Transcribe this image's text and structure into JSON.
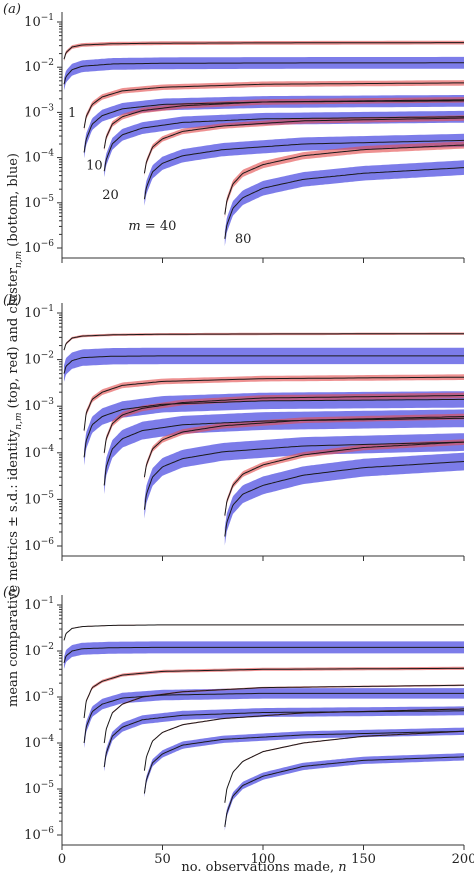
{
  "figure": {
    "ylabel_parts": {
      "main": "mean comparative metrics ± s.d.: identity",
      "sub1": "n,m",
      "mid": " (top, red) and cluster",
      "sub2": "n,m",
      "end": " (bottom, blue)"
    },
    "xlabel_parts": {
      "main": "no. observations made, ",
      "var": "n"
    },
    "colors": {
      "red": "#e34d4d",
      "blue": "#4a4ae0",
      "line": "#1a1a1a"
    }
  },
  "chart_data": [
    {
      "type": "area",
      "panel_label": "(a)",
      "m_values": [
        1,
        10,
        20,
        40,
        80
      ],
      "curve_labels": [
        {
          "text": "1"
        },
        {
          "text": "10"
        },
        {
          "text": "20"
        },
        {
          "text": "m = 40",
          "italic_prefix": "m",
          "rest": " = 40"
        },
        {
          "text": "80"
        }
      ],
      "y_scale": "log",
      "ylim": [
        1e-06,
        0.1
      ],
      "xlim": [
        0,
        200
      ],
      "ytick_labels": [
        "10−1",
        "10−2",
        "10−3",
        "10−4",
        "10−5",
        "10−6"
      ],
      "series": [
        {
          "group": "red",
          "m": 1,
          "x": [
            1,
            2,
            5,
            10,
            25,
            50,
            100,
            200
          ],
          "mean": [
            0.015,
            0.021,
            0.028,
            0.031,
            0.033,
            0.034,
            0.0345,
            0.035
          ],
          "sd_factor": 1.1
        },
        {
          "group": "blue",
          "m": 1,
          "x": [
            1,
            2,
            5,
            10,
            25,
            50,
            100,
            200
          ],
          "mean": [
            0.0042,
            0.0062,
            0.0088,
            0.0105,
            0.0118,
            0.0122,
            0.0124,
            0.0125
          ],
          "sd_factor": 1.35
        },
        {
          "group": "red",
          "m": 10,
          "x": [
            11,
            12,
            15,
            20,
            30,
            50,
            100,
            200
          ],
          "mean": [
            0.00045,
            0.0008,
            0.0015,
            0.0022,
            0.003,
            0.0036,
            0.0042,
            0.0045
          ],
          "sd_factor": 1.15
        },
        {
          "group": "blue",
          "m": 10,
          "x": [
            11,
            12,
            15,
            20,
            30,
            50,
            100,
            200
          ],
          "mean": [
            0.00013,
            0.00025,
            0.00055,
            0.00085,
            0.0012,
            0.0015,
            0.0017,
            0.0018
          ],
          "sd_factor": 1.35
        },
        {
          "group": "red",
          "m": 20,
          "x": [
            21,
            22,
            25,
            30,
            40,
            60,
            100,
            200
          ],
          "mean": [
            0.00016,
            0.00028,
            0.00055,
            0.0008,
            0.0011,
            0.0014,
            0.0017,
            0.0019
          ],
          "sd_factor": 1.15
        },
        {
          "group": "blue",
          "m": 20,
          "x": [
            21,
            22,
            25,
            30,
            40,
            60,
            100,
            200
          ],
          "mean": [
            5e-05,
            9e-05,
            0.0002,
            0.00032,
            0.00045,
            0.0006,
            0.00072,
            0.0008
          ],
          "sd_factor": 1.35
        },
        {
          "group": "red",
          "m": 40,
          "x": [
            41,
            42,
            45,
            50,
            60,
            80,
            120,
            200
          ],
          "mean": [
            4.5e-05,
            8e-05,
            0.00017,
            0.00026,
            0.00038,
            0.0005,
            0.00065,
            0.00075
          ],
          "sd_factor": 1.15
        },
        {
          "group": "blue",
          "m": 40,
          "x": [
            41,
            42,
            45,
            50,
            60,
            80,
            120,
            200
          ],
          "mean": [
            1.2e-05,
            2.2e-05,
            4.8e-05,
            7.5e-05,
            0.00011,
            0.00015,
            0.0002,
            0.00024
          ],
          "sd_factor": 1.4
        },
        {
          "group": "red",
          "m": 80,
          "x": [
            81,
            82,
            85,
            90,
            100,
            120,
            150,
            200
          ],
          "mean": [
            5.5e-06,
            1.1e-05,
            2.6e-05,
            4.5e-05,
            7e-05,
            0.00011,
            0.00015,
            0.00019
          ],
          "sd_factor": 1.2
        },
        {
          "group": "blue",
          "m": 80,
          "x": [
            81,
            82,
            85,
            90,
            100,
            120,
            150,
            200
          ],
          "mean": [
            1.6e-06,
            3.2e-06,
            7.5e-06,
            1.3e-05,
            2.1e-05,
            3.3e-05,
            4.5e-05,
            6e-05
          ],
          "sd_factor": 1.45
        }
      ]
    },
    {
      "type": "area",
      "panel_label": "(b)",
      "m_values": [
        1,
        10,
        20,
        40,
        80
      ],
      "curve_labels": [],
      "y_scale": "log",
      "ylim": [
        1e-06,
        0.1
      ],
      "xlim": [
        0,
        200
      ],
      "ytick_labels": [
        "10−1",
        "10−2",
        "10−3",
        "10−4",
        "10−5",
        "10−6"
      ],
      "series": [
        {
          "group": "red",
          "m": 1,
          "x": [
            1,
            2,
            5,
            10,
            25,
            50,
            100,
            200
          ],
          "mean": [
            0.016,
            0.022,
            0.029,
            0.032,
            0.034,
            0.035,
            0.0355,
            0.036
          ],
          "sd_factor": 1.06
        },
        {
          "group": "blue",
          "m": 1,
          "x": [
            1,
            2,
            5,
            10,
            25,
            50,
            100,
            200
          ],
          "mean": [
            0.005,
            0.0072,
            0.0095,
            0.011,
            0.0118,
            0.012,
            0.012,
            0.012
          ],
          "sd_factor": 1.5
        },
        {
          "group": "red",
          "m": 10,
          "x": [
            11,
            12,
            15,
            20,
            30,
            50,
            100,
            200
          ],
          "mean": [
            0.0003,
            0.0007,
            0.0014,
            0.002,
            0.0028,
            0.0034,
            0.0039,
            0.0042
          ],
          "sd_factor": 1.15
        },
        {
          "group": "blue",
          "m": 10,
          "x": [
            11,
            12,
            15,
            20,
            30,
            50,
            100,
            200
          ],
          "mean": [
            8e-05,
            0.00018,
            0.0004,
            0.0006,
            0.00085,
            0.0011,
            0.0013,
            0.0014
          ],
          "sd_factor": 1.5
        },
        {
          "group": "red",
          "m": 20,
          "x": [
            21,
            22,
            25,
            30,
            40,
            60,
            100,
            200
          ],
          "mean": [
            0.0001,
            0.0002,
            0.00042,
            0.00065,
            0.0009,
            0.0012,
            0.0015,
            0.0017
          ],
          "sd_factor": 1.15
        },
        {
          "group": "blue",
          "m": 20,
          "x": [
            21,
            22,
            25,
            30,
            40,
            60,
            100,
            200
          ],
          "mean": [
            2e-05,
            5e-05,
            0.00012,
            0.0002,
            0.0003,
            0.0004,
            0.00048,
            0.00055
          ],
          "sd_factor": 1.55
        },
        {
          "group": "red",
          "m": 40,
          "x": [
            41,
            42,
            45,
            50,
            60,
            80,
            120,
            200
          ],
          "mean": [
            3e-05,
            5.5e-05,
            0.00012,
            0.00019,
            0.00028,
            0.00038,
            0.0005,
            0.0006
          ],
          "sd_factor": 1.15
        },
        {
          "group": "blue",
          "m": 40,
          "x": [
            41,
            42,
            45,
            50,
            60,
            80,
            120,
            200
          ],
          "mean": [
            6e-06,
            1.3e-05,
            3e-05,
            5e-05,
            7.5e-05,
            0.000105,
            0.00014,
            0.00017
          ],
          "sd_factor": 1.55
        },
        {
          "group": "red",
          "m": 80,
          "x": [
            81,
            82,
            85,
            90,
            100,
            120,
            150,
            200
          ],
          "mean": [
            4.5e-06,
            9e-06,
            2e-05,
            3.5e-05,
            5.5e-05,
            9e-05,
            0.00013,
            0.00017
          ],
          "sd_factor": 1.15
        },
        {
          "group": "blue",
          "m": 80,
          "x": [
            81,
            82,
            85,
            90,
            100,
            120,
            150,
            200
          ],
          "mean": [
            1.6e-06,
            3.2e-06,
            7.5e-06,
            1.3e-05,
            2e-05,
            3.3e-05,
            4.8e-05,
            6.5e-05
          ],
          "sd_factor": 1.55
        }
      ]
    },
    {
      "type": "area",
      "panel_label": "(c)",
      "m_values": [
        1,
        10,
        20,
        40,
        80
      ],
      "curve_labels": [],
      "y_scale": "log",
      "ylim": [
        1e-06,
        0.1
      ],
      "xlim": [
        0,
        200
      ],
      "xticks": [
        0,
        50,
        100,
        150,
        200
      ],
      "xtick_labels": [
        "0",
        "50",
        "100",
        "150",
        "200"
      ],
      "ytick_labels": [
        "10−1",
        "10−2",
        "10−3",
        "10−4",
        "10−5",
        "10−6"
      ],
      "series": [
        {
          "group": "red",
          "m": 1,
          "x": [
            1,
            2,
            5,
            10,
            25,
            50,
            100,
            200
          ],
          "mean": [
            0.017,
            0.024,
            0.031,
            0.034,
            0.036,
            0.037,
            0.037,
            0.037
          ],
          "sd_factor": 1.02
        },
        {
          "group": "blue",
          "m": 1,
          "x": [
            1,
            2,
            5,
            10,
            25,
            50,
            100,
            200
          ],
          "mean": [
            0.0055,
            0.0078,
            0.01,
            0.0112,
            0.0118,
            0.012,
            0.012,
            0.012
          ],
          "sd_factor": 1.35
        },
        {
          "group": "red",
          "m": 10,
          "x": [
            11,
            12,
            15,
            20,
            30,
            50,
            100,
            200
          ],
          "mean": [
            0.00035,
            0.0008,
            0.0016,
            0.0022,
            0.003,
            0.0036,
            0.004,
            0.0042
          ],
          "sd_factor": 1.08
        },
        {
          "group": "blue",
          "m": 10,
          "x": [
            11,
            12,
            15,
            20,
            30,
            50,
            100,
            200
          ],
          "mean": [
            0.0001,
            0.00022,
            0.00048,
            0.0007,
            0.00095,
            0.0011,
            0.0012,
            0.0012
          ],
          "sd_factor": 1.3
        },
        {
          "group": "red",
          "m": 20,
          "x": [
            21,
            22,
            25,
            30,
            40,
            60,
            100,
            200
          ],
          "mean": [
            0.0001,
            0.0002,
            0.00045,
            0.0007,
            0.001,
            0.0013,
            0.0016,
            0.0018
          ],
          "sd_factor": 1.04
        },
        {
          "group": "blue",
          "m": 20,
          "x": [
            21,
            22,
            25,
            30,
            40,
            60,
            100,
            200
          ],
          "mean": [
            3e-05,
            6e-05,
            0.00014,
            0.00022,
            0.00032,
            0.0004,
            0.00046,
            0.0005
          ],
          "sd_factor": 1.25
        },
        {
          "group": "red",
          "m": 40,
          "x": [
            41,
            42,
            45,
            50,
            60,
            80,
            120,
            200
          ],
          "mean": [
            2.5e-05,
            5e-05,
            0.00011,
            0.00017,
            0.00025,
            0.00034,
            0.00045,
            0.00055
          ],
          "sd_factor": 1.03
        },
        {
          "group": "blue",
          "m": 40,
          "x": [
            41,
            42,
            45,
            50,
            60,
            80,
            120,
            200
          ],
          "mean": [
            8e-06,
            1.6e-05,
            3.7e-05,
            5.8e-05,
            9e-05,
            0.00012,
            0.00015,
            0.00018
          ],
          "sd_factor": 1.2
        },
        {
          "group": "red",
          "m": 80,
          "x": [
            81,
            82,
            85,
            90,
            100,
            120,
            150,
            200
          ],
          "mean": [
            5e-06,
            1e-05,
            2.3e-05,
            4e-05,
            6.5e-05,
            0.0001,
            0.00014,
            0.00018
          ],
          "sd_factor": 1.03
        },
        {
          "group": "blue",
          "m": 80,
          "x": [
            81,
            82,
            85,
            90,
            100,
            120,
            150,
            200
          ],
          "mean": [
            1.5e-06,
            3e-06,
            7e-06,
            1.2e-05,
            1.9e-05,
            3.1e-05,
            4.2e-05,
            5e-05
          ],
          "sd_factor": 1.2
        }
      ]
    }
  ]
}
